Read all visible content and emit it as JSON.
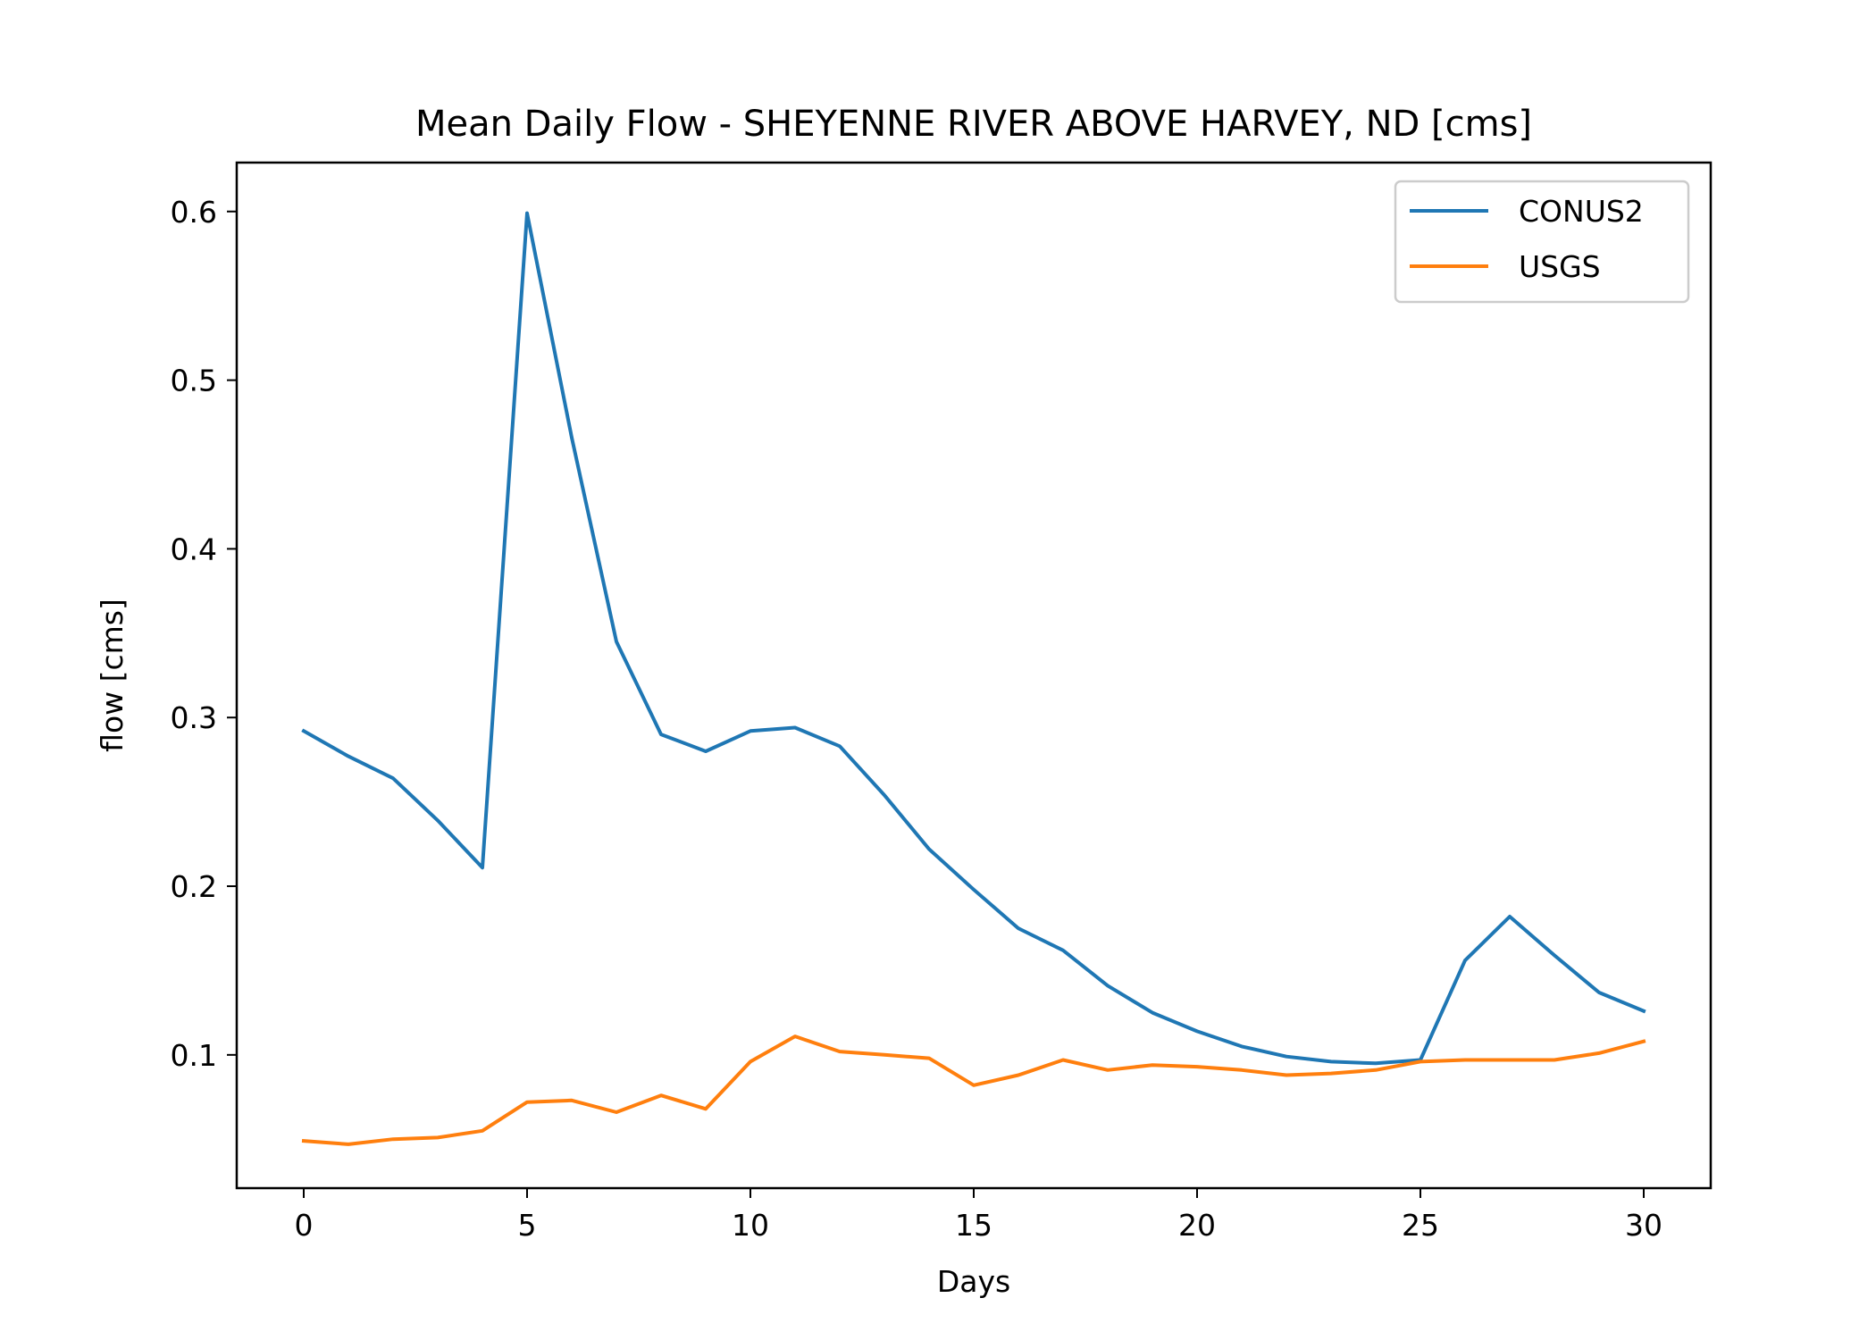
{
  "chart_data": {
    "type": "line",
    "title": "Mean Daily Flow - SHEYENNE RIVER ABOVE HARVEY, ND [cms]",
    "xlabel": "Days",
    "ylabel": "flow [cms]",
    "xlim": [
      -1.5,
      31.5
    ],
    "ylim": [
      0.021,
      0.629
    ],
    "xticks": [
      0,
      5,
      10,
      15,
      20,
      25,
      30
    ],
    "xtick_labels": [
      "0",
      "5",
      "10",
      "15",
      "20",
      "25",
      "30"
    ],
    "yticks": [
      0.1,
      0.2,
      0.3,
      0.4,
      0.5,
      0.6
    ],
    "ytick_labels": [
      "0.1",
      "0.2",
      "0.3",
      "0.4",
      "0.5",
      "0.6"
    ],
    "grid": false,
    "legend_position": "top-right",
    "x": [
      0,
      1,
      2,
      3,
      4,
      5,
      6,
      7,
      8,
      9,
      10,
      11,
      12,
      13,
      14,
      15,
      16,
      17,
      18,
      19,
      20,
      21,
      22,
      23,
      24,
      25,
      26,
      27,
      28,
      29,
      30
    ],
    "series": [
      {
        "name": "CONUS2",
        "color": "#1f77b4",
        "values": [
          0.292,
          0.277,
          0.264,
          0.239,
          0.211,
          0.599,
          0.466,
          0.345,
          0.29,
          0.28,
          0.292,
          0.294,
          0.283,
          0.254,
          0.222,
          0.198,
          0.175,
          0.162,
          0.141,
          0.125,
          0.114,
          0.105,
          0.099,
          0.096,
          0.095,
          0.097,
          0.156,
          0.182,
          0.159,
          0.137,
          0.126
        ]
      },
      {
        "name": "USGS",
        "color": "#ff7f0e",
        "values": [
          0.049,
          0.047,
          0.05,
          0.051,
          0.055,
          0.072,
          0.073,
          0.066,
          0.076,
          0.068,
          0.096,
          0.111,
          0.102,
          0.1,
          0.098,
          0.082,
          0.088,
          0.097,
          0.091,
          0.094,
          0.093,
          0.091,
          0.088,
          0.089,
          0.091,
          0.096,
          0.097,
          0.097,
          0.097,
          0.101,
          0.108
        ]
      }
    ]
  }
}
